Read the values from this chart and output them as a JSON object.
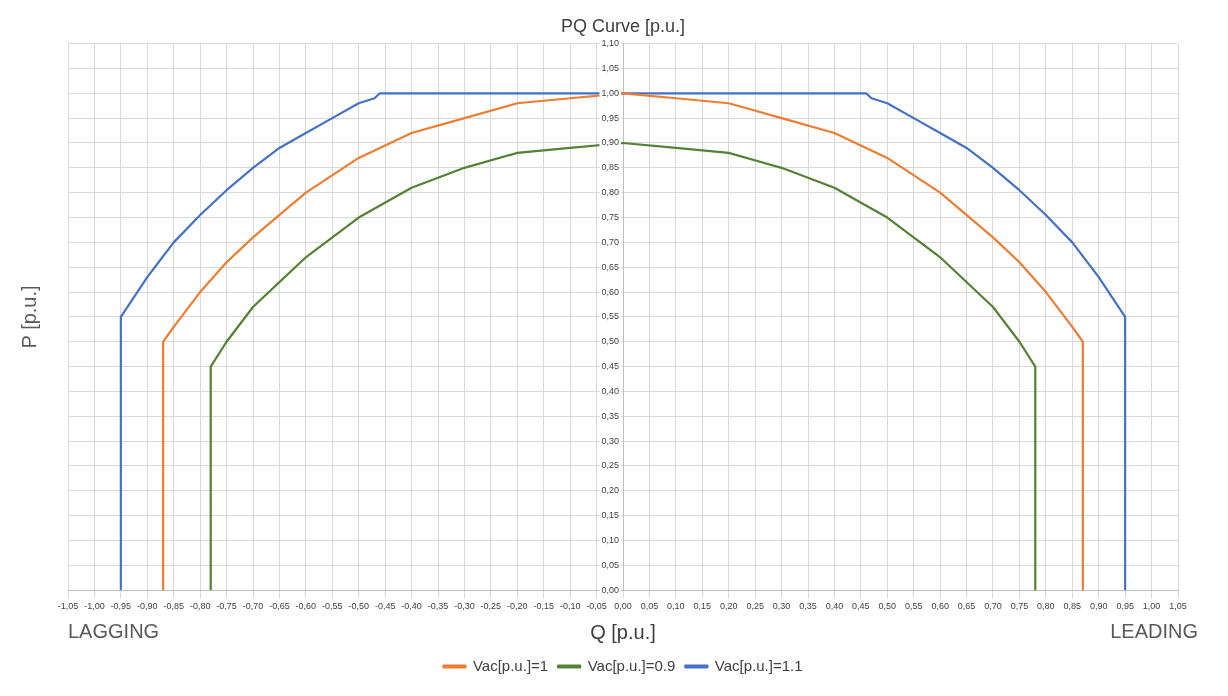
{
  "chart_data": {
    "type": "line",
    "title": "PQ Curve [p.u.]",
    "xlabel": "Q [p.u.]",
    "ylabel": "P [p.u.]",
    "annotations": [
      "LAGGING",
      "LEADING"
    ],
    "series": [
      {
        "name": "Vac[p.u.]=1",
        "color": "#ed7d31",
        "x": [
          -0.87,
          -0.87,
          -0.85,
          -0.8,
          -0.75,
          -0.7,
          -0.6,
          -0.5,
          -0.4,
          -0.3,
          -0.2,
          -0.1,
          0,
          0.1,
          0.2,
          0.3,
          0.4,
          0.5,
          0.6,
          0.7,
          0.75,
          0.8,
          0.85,
          0.87,
          0.87
        ],
        "values": [
          0,
          0.5,
          0.53,
          0.6,
          0.66,
          0.71,
          0.8,
          0.87,
          0.92,
          0.95,
          0.98,
          0.99,
          1.0,
          0.99,
          0.98,
          0.95,
          0.92,
          0.87,
          0.8,
          0.71,
          0.66,
          0.6,
          0.53,
          0.5,
          0
        ]
      },
      {
        "name": "Vac[p.u.]=0.9",
        "color": "#548235",
        "x": [
          -0.78,
          -0.78,
          -0.75,
          -0.7,
          -0.6,
          -0.5,
          -0.4,
          -0.3,
          -0.2,
          -0.1,
          0,
          0.1,
          0.2,
          0.3,
          0.4,
          0.5,
          0.6,
          0.7,
          0.75,
          0.78,
          0.78
        ],
        "values": [
          0,
          0.45,
          0.5,
          0.57,
          0.67,
          0.75,
          0.81,
          0.85,
          0.88,
          0.89,
          0.9,
          0.89,
          0.88,
          0.85,
          0.81,
          0.75,
          0.67,
          0.57,
          0.5,
          0.45,
          0
        ]
      },
      {
        "name": "Vac[p.u.]=1.1",
        "color": "#4472c4",
        "x": [
          -0.95,
          -0.95,
          -0.9,
          -0.85,
          -0.8,
          -0.75,
          -0.7,
          -0.65,
          -0.6,
          -0.55,
          -0.5,
          -0.47,
          -0.46,
          0,
          0.46,
          0.47,
          0.5,
          0.55,
          0.6,
          0.65,
          0.7,
          0.75,
          0.8,
          0.85,
          0.9,
          0.95,
          0.95
        ],
        "values": [
          0,
          0.55,
          0.63,
          0.7,
          0.755,
          0.805,
          0.85,
          0.89,
          0.92,
          0.95,
          0.98,
          0.99,
          1.0,
          1.0,
          1.0,
          0.99,
          0.98,
          0.95,
          0.92,
          0.89,
          0.85,
          0.805,
          0.755,
          0.7,
          0.63,
          0.55,
          0
        ]
      }
    ],
    "xlim": [
      -1.05,
      1.05
    ],
    "xticks": [
      {
        "value": -1.05,
        "label": "-1,05"
      },
      {
        "value": -1,
        "label": "-1,00"
      },
      {
        "value": -0.95,
        "label": "-0,95"
      },
      {
        "value": -0.9,
        "label": "-0,90"
      },
      {
        "value": -0.85,
        "label": "-0,85"
      },
      {
        "value": -0.8,
        "label": "-0,80"
      },
      {
        "value": -0.75,
        "label": "-0,75"
      },
      {
        "value": -0.7,
        "label": "-0,70"
      },
      {
        "value": -0.65,
        "label": "-0,65"
      },
      {
        "value": -0.6,
        "label": "-0,60"
      },
      {
        "value": -0.55,
        "label": "-0,55"
      },
      {
        "value": -0.5,
        "label": "-0,50"
      },
      {
        "value": -0.45,
        "label": "-0,45"
      },
      {
        "value": -0.4,
        "label": "-0,40"
      },
      {
        "value": -0.35,
        "label": "-0,35"
      },
      {
        "value": -0.3,
        "label": "-0,30"
      },
      {
        "value": -0.25,
        "label": "-0,25"
      },
      {
        "value": -0.2,
        "label": "-0,20"
      },
      {
        "value": -0.15,
        "label": "-0,15"
      },
      {
        "value": -0.1,
        "label": "-0,10"
      },
      {
        "value": -0.05,
        "label": "-0,05"
      },
      {
        "value": 0,
        "label": "0,00"
      },
      {
        "value": 0.05,
        "label": "0,05"
      },
      {
        "value": 0.1,
        "label": "0,10"
      },
      {
        "value": 0.15,
        "label": "0,15"
      },
      {
        "value": 0.2,
        "label": "0,20"
      },
      {
        "value": 0.25,
        "label": "0,25"
      },
      {
        "value": 0.3,
        "label": "0,30"
      },
      {
        "value": 0.35,
        "label": "0,35"
      },
      {
        "value": 0.4,
        "label": "0,40"
      },
      {
        "value": 0.45,
        "label": "0,45"
      },
      {
        "value": 0.5,
        "label": "0,50"
      },
      {
        "value": 0.55,
        "label": "0,55"
      },
      {
        "value": 0.6,
        "label": "0,60"
      },
      {
        "value": 0.65,
        "label": "0,65"
      },
      {
        "value": 0.7,
        "label": "0,70"
      },
      {
        "value": 0.75,
        "label": "0,75"
      },
      {
        "value": 0.8,
        "label": "0,80"
      },
      {
        "value": 0.85,
        "label": "0,85"
      },
      {
        "value": 0.9,
        "label": "0,90"
      },
      {
        "value": 0.95,
        "label": "0,95"
      },
      {
        "value": 1,
        "label": "1,00"
      },
      {
        "value": 1.05,
        "label": "1,05"
      }
    ],
    "ylim": [
      0,
      1.1
    ],
    "yticks": [
      {
        "value": 0,
        "label": "0,00"
      },
      {
        "value": 0.05,
        "label": "0,05"
      },
      {
        "value": 0.1,
        "label": "0,10"
      },
      {
        "value": 0.15,
        "label": "0,15"
      },
      {
        "value": 0.2,
        "label": "0,20"
      },
      {
        "value": 0.25,
        "label": "0,25"
      },
      {
        "value": 0.3,
        "label": "0,30"
      },
      {
        "value": 0.35,
        "label": "0,35"
      },
      {
        "value": 0.4,
        "label": "0,40"
      },
      {
        "value": 0.45,
        "label": "0,45"
      },
      {
        "value": 0.5,
        "label": "0,50"
      },
      {
        "value": 0.55,
        "label": "0,55"
      },
      {
        "value": 0.6,
        "label": "0,60"
      },
      {
        "value": 0.65,
        "label": "0,65"
      },
      {
        "value": 0.7,
        "label": "0,70"
      },
      {
        "value": 0.75,
        "label": "0,75"
      },
      {
        "value": 0.8,
        "label": "0,80"
      },
      {
        "value": 0.85,
        "label": "0,85"
      },
      {
        "value": 0.9,
        "label": "0,90"
      },
      {
        "value": 0.95,
        "label": "0,95"
      },
      {
        "value": 1,
        "label": "1,00"
      },
      {
        "value": 1.05,
        "label": "1,05"
      },
      {
        "value": 1.1,
        "label": "1,10"
      }
    ],
    "grid": true,
    "legend": "bottom",
    "marker": "none",
    "line_style": "solid"
  }
}
